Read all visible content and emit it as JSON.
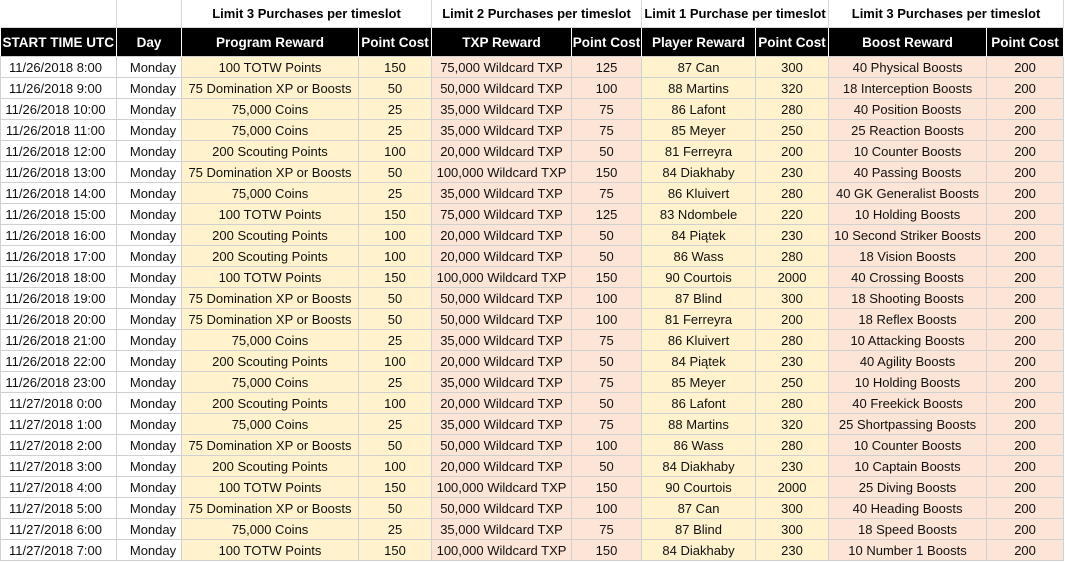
{
  "limits": {
    "program": "Limit 3 Purchases per timeslot",
    "txp": "Limit 2 Purchases per timeslot",
    "player": "Limit 1 Purchase per timeslot",
    "boost": "Limit 3 Purchases per timeslot"
  },
  "headers": [
    "START TIME UTC",
    "Day",
    "Program Reward",
    "Point Cost",
    "TXP Reward",
    "Point Cost",
    "Player Reward",
    "Point Cost",
    "Boost Reward",
    "Point Cost"
  ],
  "rows": [
    [
      "11/26/2018 8:00",
      "Monday",
      "100 TOTW Points",
      "150",
      "75,000 Wildcard TXP",
      "125",
      "87 Can",
      "300",
      "40 Physical Boosts",
      "200"
    ],
    [
      "11/26/2018 9:00",
      "Monday",
      "75 Domination XP or Boosts",
      "50",
      "50,000 Wildcard TXP",
      "100",
      "88 Martins",
      "320",
      "18 Interception Boosts",
      "200"
    ],
    [
      "11/26/2018 10:00",
      "Monday",
      "75,000 Coins",
      "25",
      "35,000 Wildcard TXP",
      "75",
      "86 Lafont",
      "280",
      "40 Position Boosts",
      "200"
    ],
    [
      "11/26/2018 11:00",
      "Monday",
      "75,000 Coins",
      "25",
      "35,000 Wildcard TXP",
      "75",
      "85 Meyer",
      "250",
      "25 Reaction Boosts",
      "200"
    ],
    [
      "11/26/2018 12:00",
      "Monday",
      "200 Scouting Points",
      "100",
      "20,000 Wildcard TXP",
      "50",
      "81 Ferreyra",
      "200",
      "10 Counter Boosts",
      "200"
    ],
    [
      "11/26/2018 13:00",
      "Monday",
      "75 Domination XP or Boosts",
      "50",
      "100,000 Wildcard TXP",
      "150",
      "84 Diakhaby",
      "230",
      "40 Passing Boosts",
      "200"
    ],
    [
      "11/26/2018 14:00",
      "Monday",
      "75,000 Coins",
      "25",
      "35,000 Wildcard TXP",
      "75",
      "86 Kluivert",
      "280",
      "40 GK Generalist Boosts",
      "200"
    ],
    [
      "11/26/2018 15:00",
      "Monday",
      "100 TOTW Points",
      "150",
      "75,000 Wildcard TXP",
      "125",
      "83 Ndombele",
      "220",
      "10 Holding Boosts",
      "200"
    ],
    [
      "11/26/2018 16:00",
      "Monday",
      "200 Scouting Points",
      "100",
      "20,000 Wildcard TXP",
      "50",
      "84 Piątek",
      "230",
      "10 Second Striker Boosts",
      "200"
    ],
    [
      "11/26/2018 17:00",
      "Monday",
      "200 Scouting Points",
      "100",
      "20,000 Wildcard TXP",
      "50",
      "86 Wass",
      "280",
      "18 Vision Boosts",
      "200"
    ],
    [
      "11/26/2018 18:00",
      "Monday",
      "100 TOTW Points",
      "150",
      "100,000 Wildcard TXP",
      "150",
      "90 Courtois",
      "2000",
      "40 Crossing Boosts",
      "200"
    ],
    [
      "11/26/2018 19:00",
      "Monday",
      "75 Domination XP or Boosts",
      "50",
      "50,000 Wildcard TXP",
      "100",
      "87 Blind",
      "300",
      "18 Shooting Boosts",
      "200"
    ],
    [
      "11/26/2018 20:00",
      "Monday",
      "75 Domination XP or Boosts",
      "50",
      "50,000 Wildcard TXP",
      "100",
      "81 Ferreyra",
      "200",
      "18 Reflex Boosts",
      "200"
    ],
    [
      "11/26/2018 21:00",
      "Monday",
      "75,000 Coins",
      "25",
      "35,000 Wildcard TXP",
      "75",
      "86 Kluivert",
      "280",
      "10 Attacking Boosts",
      "200"
    ],
    [
      "11/26/2018 22:00",
      "Monday",
      "200 Scouting Points",
      "100",
      "20,000 Wildcard TXP",
      "50",
      "84 Piątek",
      "230",
      "40 Agility Boosts",
      "200"
    ],
    [
      "11/26/2018 23:00",
      "Monday",
      "75,000 Coins",
      "25",
      "35,000 Wildcard TXP",
      "75",
      "85 Meyer",
      "250",
      "10 Holding Boosts",
      "200"
    ],
    [
      "11/27/2018 0:00",
      "Monday",
      "200 Scouting Points",
      "100",
      "20,000 Wildcard TXP",
      "50",
      "86 Lafont",
      "280",
      "40 Freekick Boosts",
      "200"
    ],
    [
      "11/27/2018 1:00",
      "Monday",
      "75,000 Coins",
      "25",
      "35,000 Wildcard TXP",
      "75",
      "88 Martins",
      "320",
      "25 Shortpassing Boosts",
      "200"
    ],
    [
      "11/27/2018 2:00",
      "Monday",
      "75 Domination XP or Boosts",
      "50",
      "50,000 Wildcard TXP",
      "100",
      "86 Wass",
      "280",
      "10 Counter Boosts",
      "200"
    ],
    [
      "11/27/2018 3:00",
      "Monday",
      "200 Scouting Points",
      "100",
      "20,000 Wildcard TXP",
      "50",
      "84 Diakhaby",
      "230",
      "10 Captain Boosts",
      "200"
    ],
    [
      "11/27/2018 4:00",
      "Monday",
      "100 TOTW Points",
      "150",
      "100,000 Wildcard TXP",
      "150",
      "90 Courtois",
      "2000",
      "25 Diving Boosts",
      "200"
    ],
    [
      "11/27/2018 5:00",
      "Monday",
      "75 Domination XP or Boosts",
      "50",
      "50,000 Wildcard TXP",
      "100",
      "87 Can",
      "300",
      "40 Heading Boosts",
      "200"
    ],
    [
      "11/27/2018 6:00",
      "Monday",
      "75,000 Coins",
      "25",
      "35,000 Wildcard TXP",
      "75",
      "87 Blind",
      "300",
      "18 Speed Boosts",
      "200"
    ],
    [
      "11/27/2018 7:00",
      "Monday",
      "100 TOTW Points",
      "150",
      "100,000 Wildcard TXP",
      "150",
      "84 Diakhaby",
      "230",
      "10 Number 1 Boosts",
      "200"
    ]
  ],
  "colors": {
    "header_bg": "#000000",
    "program_fill": "#fff2cc",
    "txp_fill": "#fce4d6",
    "player_fill": "#fff2cc",
    "boost_fill": "#fce4d6"
  }
}
